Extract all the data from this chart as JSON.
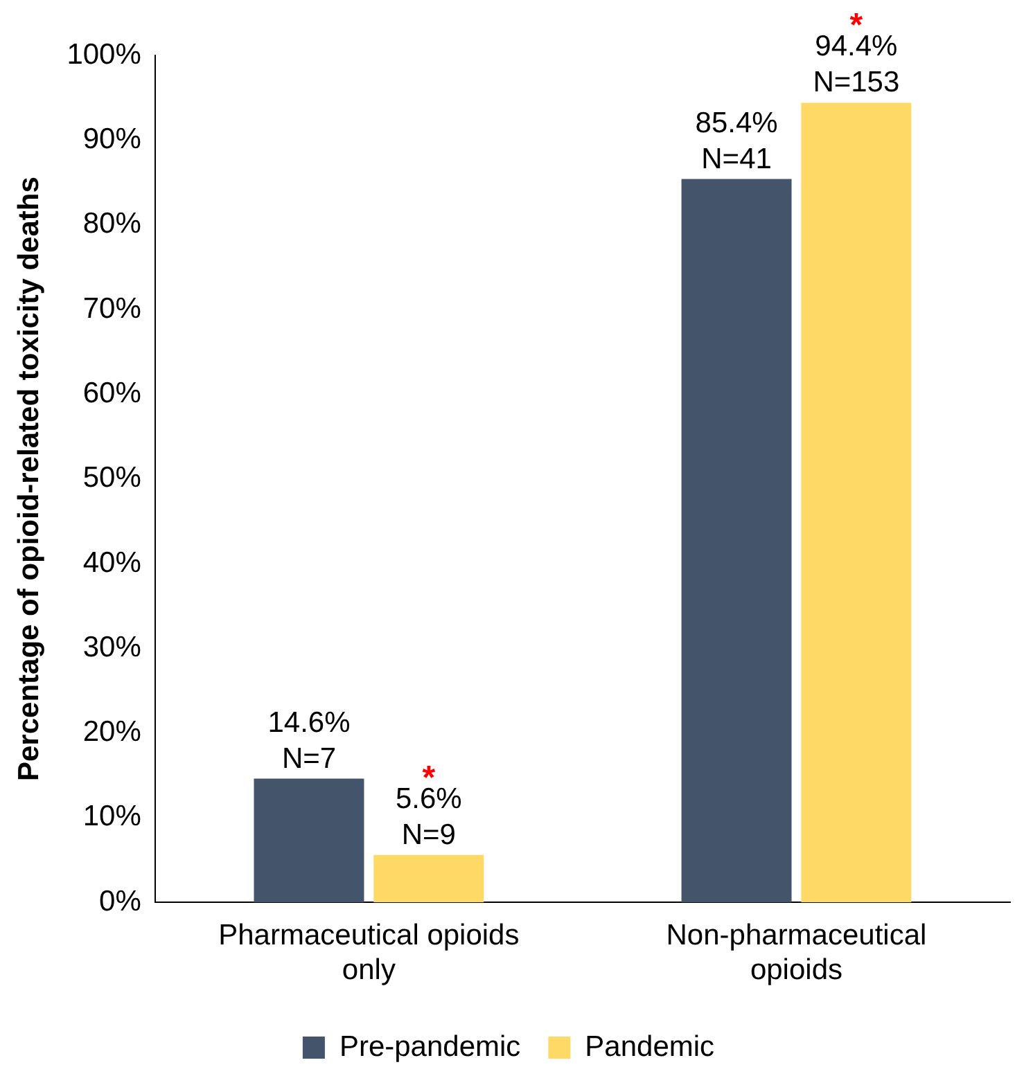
{
  "chart_data": {
    "type": "bar",
    "ylabel": "Percentage of opioid-related toxicity deaths",
    "categories": [
      "Pharmaceutical opioids only",
      "Non-pharmaceutical opioids"
    ],
    "series": [
      {
        "name": "Pre-pandemic",
        "color": "#44546a",
        "values": [
          14.6,
          85.4
        ],
        "value_labels": [
          "14.6%\nN=7",
          "85.4%\nN=41"
        ]
      },
      {
        "name": "Pandemic",
        "color": "#ffd966",
        "values": [
          5.6,
          94.4
        ],
        "value_labels": [
          "5.6%\nN=9",
          "94.4%\nN=153"
        ]
      }
    ],
    "ylim": [
      0,
      100
    ],
    "yticks": [
      {
        "value": 0,
        "label": "0%"
      },
      {
        "value": 10,
        "label": "10%"
      },
      {
        "value": 20,
        "label": "20%"
      },
      {
        "value": 30,
        "label": "30%"
      },
      {
        "value": 40,
        "label": "40%"
      },
      {
        "value": 50,
        "label": "50%"
      },
      {
        "value": 60,
        "label": "60%"
      },
      {
        "value": 70,
        "label": "70%"
      },
      {
        "value": 80,
        "label": "80%"
      },
      {
        "value": 90,
        "label": "90%"
      },
      {
        "value": 100,
        "label": "100%"
      }
    ],
    "annotations": [
      {
        "text": "*",
        "x": "Pharmaceutical opioids only",
        "y": 5.6
      },
      {
        "text": "*",
        "x": "Non-pharmaceutical opioids",
        "y": 94.4
      }
    ],
    "grid": false,
    "legend": "bottom"
  }
}
